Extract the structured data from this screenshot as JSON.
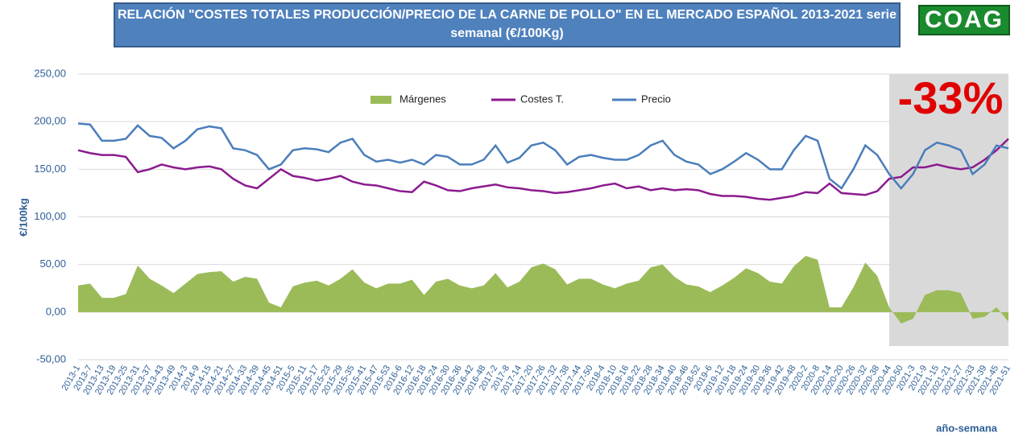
{
  "chart_data": {
    "type": "line",
    "title": "RELACIÓN \"COSTES TOTALES PRODUCCIÓN/PRECIO DE LA CARNE DE POLLO\" EN EL MERCADO ESPAÑOL 2013-2021 serie semanal (€/100Kg)",
    "logo": "COAG",
    "annotation": "-33%",
    "y_label": "€/100kg",
    "x_label": "año-semana",
    "categories": [
      "2013-1",
      "2013-7",
      "2013-13",
      "2013-19",
      "2013-25",
      "2013-31",
      "2013-37",
      "2013-43",
      "2013-49",
      "2014-3",
      "2014-9",
      "2014-15",
      "2014-21",
      "2014-27",
      "2014-33",
      "2014-39",
      "2014-45",
      "2014-51",
      "2015-5",
      "2015-11",
      "2015-17",
      "2015-23",
      "2015-29",
      "2015-35",
      "2015-41",
      "2015-47",
      "2015-53",
      "2016-6",
      "2016-12",
      "2016-18",
      "2016-24",
      "2016-30",
      "2016-36",
      "2016-42",
      "2016-48",
      "2017-2",
      "2017-8",
      "2017-14",
      "2017-20",
      "2017-26",
      "2017-32",
      "2017-38",
      "2017-44",
      "2017-50",
      "2018-4",
      "2018-10",
      "2018-16",
      "2018-22",
      "2018-28",
      "2018-34",
      "2018-40",
      "2018-46",
      "2018-52",
      "2019-6",
      "2019-12",
      "2019-18",
      "2019-24",
      "2019-30",
      "2019-36",
      "2019-42",
      "2019-48",
      "2020-2",
      "2020-8",
      "2020-14",
      "2020-20",
      "2020-26",
      "2020-32",
      "2020-38",
      "2020-44",
      "2020-50",
      "2021-3",
      "2021-9",
      "2021-15",
      "2021-21",
      "2021-27",
      "2021-33",
      "2021-39",
      "2021-45",
      "2021-51"
    ],
    "series": [
      {
        "name": "Márgenes",
        "style": "area",
        "color": "#9bbb59",
        "values": [
          28,
          30,
          15,
          15,
          19,
          49,
          35,
          28,
          20,
          30,
          40,
          42,
          43,
          32,
          37,
          35,
          10,
          5,
          27,
          31,
          33,
          28,
          35,
          45,
          31,
          25,
          30,
          30,
          34,
          18,
          32,
          35,
          28,
          25,
          28,
          41,
          26,
          32,
          47,
          51,
          45,
          29,
          35,
          35,
          29,
          25,
          30,
          33,
          47,
          50,
          37,
          29,
          27,
          21,
          28,
          36,
          46,
          41,
          32,
          30,
          48,
          59,
          55,
          5,
          5,
          26,
          52,
          38,
          5,
          -12,
          -7,
          18,
          23,
          23,
          20,
          -7,
          -5,
          5,
          -10
        ]
      },
      {
        "name": "Costes T.",
        "style": "line",
        "color": "#8b1a8f",
        "values": [
          170,
          167,
          165,
          165,
          163,
          147,
          150,
          155,
          152,
          150,
          152,
          153,
          150,
          140,
          133,
          130,
          140,
          150,
          143,
          141,
          138,
          140,
          143,
          137,
          134,
          133,
          130,
          127,
          126,
          137,
          133,
          128,
          127,
          130,
          132,
          134,
          131,
          130,
          128,
          127,
          125,
          126,
          128,
          130,
          133,
          135,
          130,
          132,
          128,
          130,
          128,
          129,
          128,
          124,
          122,
          122,
          121,
          119,
          118,
          120,
          122,
          126,
          125,
          135,
          125,
          124,
          123,
          127,
          140,
          142,
          152,
          152,
          155,
          152,
          150,
          152,
          160,
          170,
          182
        ]
      },
      {
        "name": "Precio",
        "style": "line",
        "color": "#4a7ebb",
        "values": [
          198,
          197,
          180,
          180,
          182,
          196,
          185,
          183,
          172,
          180,
          192,
          195,
          193,
          172,
          170,
          165,
          150,
          155,
          170,
          172,
          171,
          168,
          178,
          182,
          165,
          158,
          160,
          157,
          160,
          155,
          165,
          163,
          155,
          155,
          160,
          175,
          157,
          162,
          175,
          178,
          170,
          155,
          163,
          165,
          162,
          160,
          160,
          165,
          175,
          180,
          165,
          158,
          155,
          145,
          150,
          158,
          167,
          160,
          150,
          150,
          170,
          185,
          180,
          140,
          130,
          150,
          175,
          165,
          145,
          130,
          145,
          170,
          178,
          175,
          170,
          145,
          155,
          175,
          172
        ]
      }
    ],
    "ylim": [
      -50,
      250
    ],
    "yticks": [
      {
        "value": -50,
        "label": "-50,00"
      },
      {
        "value": 0,
        "label": "0,00"
      },
      {
        "value": 50,
        "label": "50,00"
      },
      {
        "value": 100,
        "label": "100,00"
      },
      {
        "value": 150,
        "label": "150,00"
      },
      {
        "value": 200,
        "label": "200,00"
      },
      {
        "value": 250,
        "label": "250,00"
      }
    ],
    "grid": true,
    "legend": "top"
  }
}
